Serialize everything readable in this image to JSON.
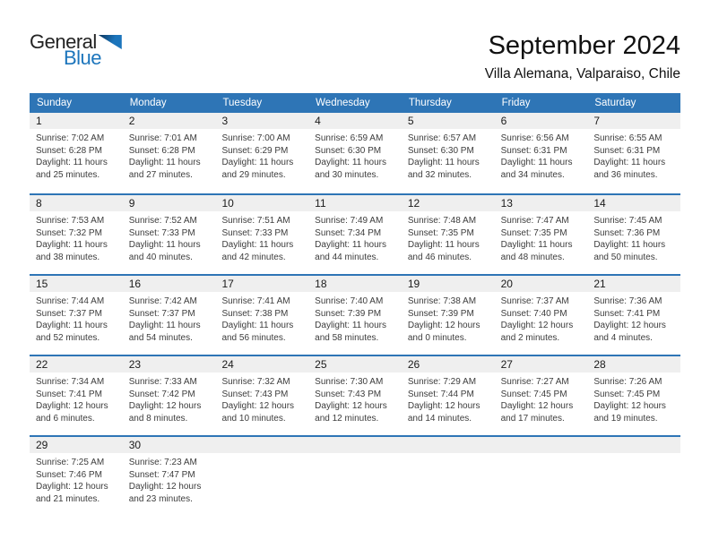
{
  "logo": {
    "text_general": "General",
    "text_blue": "Blue"
  },
  "header": {
    "title": "September 2024",
    "subtitle": "Villa Alemana, Valparaiso, Chile"
  },
  "colors": {
    "header_blue": "#2E75B6",
    "divider_blue": "#2E75B6",
    "day_band_gray": "#EFEFEF",
    "logo_blue": "#1C75BC",
    "logo_dark": "#0C3B66"
  },
  "calendar": {
    "weekdays": [
      "Sunday",
      "Monday",
      "Tuesday",
      "Wednesday",
      "Thursday",
      "Friday",
      "Saturday"
    ],
    "weeks": [
      [
        {
          "day": "1",
          "sunrise": "Sunrise: 7:02 AM",
          "sunset": "Sunset: 6:28 PM",
          "daylight_line1": "Daylight: 11 hours",
          "daylight_line2": "and 25 minutes."
        },
        {
          "day": "2",
          "sunrise": "Sunrise: 7:01 AM",
          "sunset": "Sunset: 6:28 PM",
          "daylight_line1": "Daylight: 11 hours",
          "daylight_line2": "and 27 minutes."
        },
        {
          "day": "3",
          "sunrise": "Sunrise: 7:00 AM",
          "sunset": "Sunset: 6:29 PM",
          "daylight_line1": "Daylight: 11 hours",
          "daylight_line2": "and 29 minutes."
        },
        {
          "day": "4",
          "sunrise": "Sunrise: 6:59 AM",
          "sunset": "Sunset: 6:30 PM",
          "daylight_line1": "Daylight: 11 hours",
          "daylight_line2": "and 30 minutes."
        },
        {
          "day": "5",
          "sunrise": "Sunrise: 6:57 AM",
          "sunset": "Sunset: 6:30 PM",
          "daylight_line1": "Daylight: 11 hours",
          "daylight_line2": "and 32 minutes."
        },
        {
          "day": "6",
          "sunrise": "Sunrise: 6:56 AM",
          "sunset": "Sunset: 6:31 PM",
          "daylight_line1": "Daylight: 11 hours",
          "daylight_line2": "and 34 minutes."
        },
        {
          "day": "7",
          "sunrise": "Sunrise: 6:55 AM",
          "sunset": "Sunset: 6:31 PM",
          "daylight_line1": "Daylight: 11 hours",
          "daylight_line2": "and 36 minutes."
        }
      ],
      [
        {
          "day": "8",
          "sunrise": "Sunrise: 7:53 AM",
          "sunset": "Sunset: 7:32 PM",
          "daylight_line1": "Daylight: 11 hours",
          "daylight_line2": "and 38 minutes."
        },
        {
          "day": "9",
          "sunrise": "Sunrise: 7:52 AM",
          "sunset": "Sunset: 7:33 PM",
          "daylight_line1": "Daylight: 11 hours",
          "daylight_line2": "and 40 minutes."
        },
        {
          "day": "10",
          "sunrise": "Sunrise: 7:51 AM",
          "sunset": "Sunset: 7:33 PM",
          "daylight_line1": "Daylight: 11 hours",
          "daylight_line2": "and 42 minutes."
        },
        {
          "day": "11",
          "sunrise": "Sunrise: 7:49 AM",
          "sunset": "Sunset: 7:34 PM",
          "daylight_line1": "Daylight: 11 hours",
          "daylight_line2": "and 44 minutes."
        },
        {
          "day": "12",
          "sunrise": "Sunrise: 7:48 AM",
          "sunset": "Sunset: 7:35 PM",
          "daylight_line1": "Daylight: 11 hours",
          "daylight_line2": "and 46 minutes."
        },
        {
          "day": "13",
          "sunrise": "Sunrise: 7:47 AM",
          "sunset": "Sunset: 7:35 PM",
          "daylight_line1": "Daylight: 11 hours",
          "daylight_line2": "and 48 minutes."
        },
        {
          "day": "14",
          "sunrise": "Sunrise: 7:45 AM",
          "sunset": "Sunset: 7:36 PM",
          "daylight_line1": "Daylight: 11 hours",
          "daylight_line2": "and 50 minutes."
        }
      ],
      [
        {
          "day": "15",
          "sunrise": "Sunrise: 7:44 AM",
          "sunset": "Sunset: 7:37 PM",
          "daylight_line1": "Daylight: 11 hours",
          "daylight_line2": "and 52 minutes."
        },
        {
          "day": "16",
          "sunrise": "Sunrise: 7:42 AM",
          "sunset": "Sunset: 7:37 PM",
          "daylight_line1": "Daylight: 11 hours",
          "daylight_line2": "and 54 minutes."
        },
        {
          "day": "17",
          "sunrise": "Sunrise: 7:41 AM",
          "sunset": "Sunset: 7:38 PM",
          "daylight_line1": "Daylight: 11 hours",
          "daylight_line2": "and 56 minutes."
        },
        {
          "day": "18",
          "sunrise": "Sunrise: 7:40 AM",
          "sunset": "Sunset: 7:39 PM",
          "daylight_line1": "Daylight: 11 hours",
          "daylight_line2": "and 58 minutes."
        },
        {
          "day": "19",
          "sunrise": "Sunrise: 7:38 AM",
          "sunset": "Sunset: 7:39 PM",
          "daylight_line1": "Daylight: 12 hours",
          "daylight_line2": "and 0 minutes."
        },
        {
          "day": "20",
          "sunrise": "Sunrise: 7:37 AM",
          "sunset": "Sunset: 7:40 PM",
          "daylight_line1": "Daylight: 12 hours",
          "daylight_line2": "and 2 minutes."
        },
        {
          "day": "21",
          "sunrise": "Sunrise: 7:36 AM",
          "sunset": "Sunset: 7:41 PM",
          "daylight_line1": "Daylight: 12 hours",
          "daylight_line2": "and 4 minutes."
        }
      ],
      [
        {
          "day": "22",
          "sunrise": "Sunrise: 7:34 AM",
          "sunset": "Sunset: 7:41 PM",
          "daylight_line1": "Daylight: 12 hours",
          "daylight_line2": "and 6 minutes."
        },
        {
          "day": "23",
          "sunrise": "Sunrise: 7:33 AM",
          "sunset": "Sunset: 7:42 PM",
          "daylight_line1": "Daylight: 12 hours",
          "daylight_line2": "and 8 minutes."
        },
        {
          "day": "24",
          "sunrise": "Sunrise: 7:32 AM",
          "sunset": "Sunset: 7:43 PM",
          "daylight_line1": "Daylight: 12 hours",
          "daylight_line2": "and 10 minutes."
        },
        {
          "day": "25",
          "sunrise": "Sunrise: 7:30 AM",
          "sunset": "Sunset: 7:43 PM",
          "daylight_line1": "Daylight: 12 hours",
          "daylight_line2": "and 12 minutes."
        },
        {
          "day": "26",
          "sunrise": "Sunrise: 7:29 AM",
          "sunset": "Sunset: 7:44 PM",
          "daylight_line1": "Daylight: 12 hours",
          "daylight_line2": "and 14 minutes."
        },
        {
          "day": "27",
          "sunrise": "Sunrise: 7:27 AM",
          "sunset": "Sunset: 7:45 PM",
          "daylight_line1": "Daylight: 12 hours",
          "daylight_line2": "and 17 minutes."
        },
        {
          "day": "28",
          "sunrise": "Sunrise: 7:26 AM",
          "sunset": "Sunset: 7:45 PM",
          "daylight_line1": "Daylight: 12 hours",
          "daylight_line2": "and 19 minutes."
        }
      ],
      [
        {
          "day": "29",
          "sunrise": "Sunrise: 7:25 AM",
          "sunset": "Sunset: 7:46 PM",
          "daylight_line1": "Daylight: 12 hours",
          "daylight_line2": "and 21 minutes."
        },
        {
          "day": "30",
          "sunrise": "Sunrise: 7:23 AM",
          "sunset": "Sunset: 7:47 PM",
          "daylight_line1": "Daylight: 12 hours",
          "daylight_line2": "and 23 minutes."
        },
        null,
        null,
        null,
        null,
        null
      ]
    ]
  }
}
